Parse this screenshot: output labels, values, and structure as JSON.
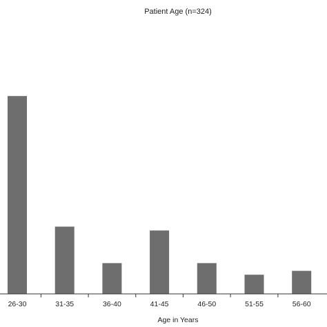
{
  "chart_data": {
    "type": "bar",
    "title": "Patient Age (n=324)",
    "xlabel": "Age in Years",
    "ylabel": "",
    "categories": [
      "26-30",
      "31-35",
      "36-40",
      "41-45",
      "46-50",
      "51-55",
      "56-60"
    ],
    "values": [
      103,
      35,
      16,
      33,
      16,
      10,
      12
    ],
    "ylim": [
      0,
      130
    ],
    "grid": false,
    "legend": "none",
    "bar_color": "#6e6e6e",
    "axis_color": "#333333"
  }
}
